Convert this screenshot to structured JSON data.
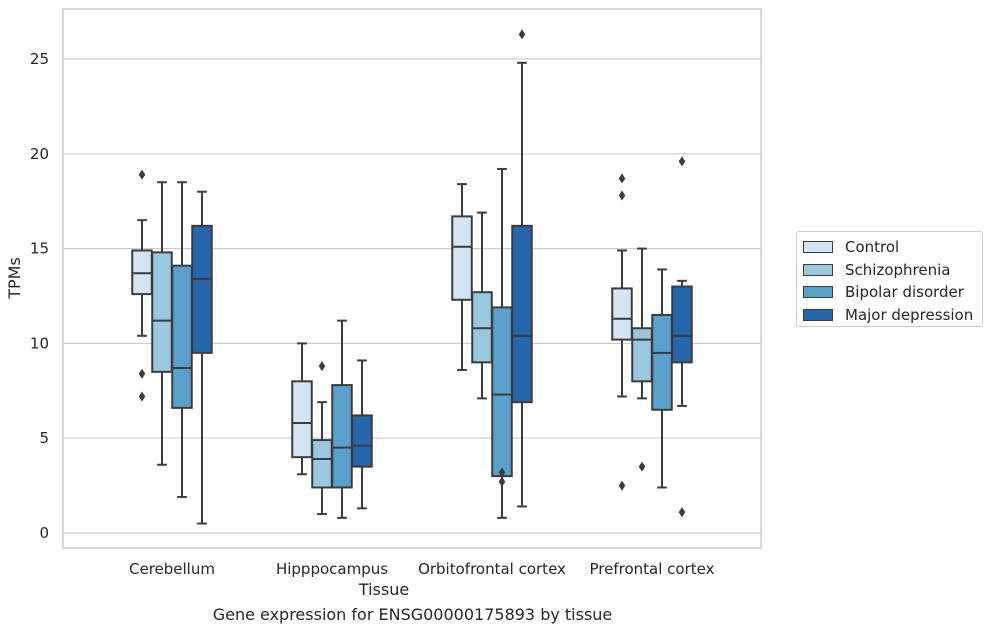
{
  "chart_data": {
    "type": "boxplot",
    "xlabel": "Tissue",
    "ylabel": "TPMs",
    "caption": "Gene expression for ENSG00000175893 by tissue",
    "ylim": [
      -0.8,
      27.5
    ],
    "yticks": [
      0,
      5,
      10,
      15,
      20,
      25
    ],
    "categories": [
      "Cerebellum",
      "Hipppocampus",
      "Orbitofrontal cortex",
      "Prefrontal cortex"
    ],
    "grid": "horizontal",
    "legend_position": "right",
    "series": [
      {
        "name": "Control",
        "color": "#d3e4f3",
        "boxes": [
          {
            "whislo": 10.4,
            "q1": 12.6,
            "med": 13.7,
            "q3": 14.9,
            "whishi": 16.5,
            "fliers": [
              18.9,
              8.4,
              7.2
            ]
          },
          {
            "whislo": 3.1,
            "q1": 4.0,
            "med": 5.8,
            "q3": 8.0,
            "whishi": 10.0,
            "fliers": []
          },
          {
            "whislo": 8.6,
            "q1": 12.3,
            "med": 15.1,
            "q3": 16.7,
            "whishi": 18.4,
            "fliers": []
          },
          {
            "whislo": 7.2,
            "q1": 10.2,
            "med": 11.3,
            "q3": 12.9,
            "whishi": 14.9,
            "fliers": [
              18.7,
              17.8,
              2.5
            ]
          }
        ]
      },
      {
        "name": "Schizophrenia",
        "color": "#9ac8e0",
        "boxes": [
          {
            "whislo": 3.6,
            "q1": 8.5,
            "med": 11.2,
            "q3": 14.8,
            "whishi": 18.5,
            "fliers": []
          },
          {
            "whislo": 1.0,
            "q1": 2.4,
            "med": 3.9,
            "q3": 4.9,
            "whishi": 6.9,
            "fliers": [
              8.8
            ]
          },
          {
            "whislo": 7.1,
            "q1": 9.0,
            "med": 10.8,
            "q3": 12.7,
            "whishi": 16.9,
            "fliers": []
          },
          {
            "whislo": 7.1,
            "q1": 8.0,
            "med": 10.2,
            "q3": 10.8,
            "whishi": 15.0,
            "fliers": [
              3.5
            ]
          }
        ]
      },
      {
        "name": "Bipolar disorder",
        "color": "#5aa0cd",
        "boxes": [
          {
            "whislo": 1.9,
            "q1": 6.6,
            "med": 8.7,
            "q3": 14.1,
            "whishi": 18.5,
            "fliers": []
          },
          {
            "whislo": 0.8,
            "q1": 2.4,
            "med": 4.5,
            "q3": 7.8,
            "whishi": 11.2,
            "fliers": []
          },
          {
            "whislo": 0.8,
            "q1": 3.0,
            "med": 7.3,
            "q3": 11.9,
            "whishi": 19.2,
            "fliers": [
              3.2,
              2.7
            ]
          },
          {
            "whislo": 2.4,
            "q1": 6.5,
            "med": 9.5,
            "q3": 11.5,
            "whishi": 13.9,
            "fliers": []
          }
        ]
      },
      {
        "name": "Major depression",
        "color": "#2666aa",
        "boxes": [
          {
            "whislo": 0.5,
            "q1": 9.5,
            "med": 13.4,
            "q3": 16.2,
            "whishi": 18.0,
            "fliers": []
          },
          {
            "whislo": 1.3,
            "q1": 3.5,
            "med": 4.6,
            "q3": 6.2,
            "whishi": 9.1,
            "fliers": []
          },
          {
            "whislo": 1.4,
            "q1": 6.9,
            "med": 10.4,
            "q3": 16.2,
            "whishi": 24.8,
            "fliers": [
              26.3
            ]
          },
          {
            "whislo": 6.7,
            "q1": 9.0,
            "med": 10.4,
            "q3": 13.0,
            "whishi": 13.3,
            "fliers": [
              19.6,
              1.1
            ]
          }
        ]
      }
    ]
  }
}
